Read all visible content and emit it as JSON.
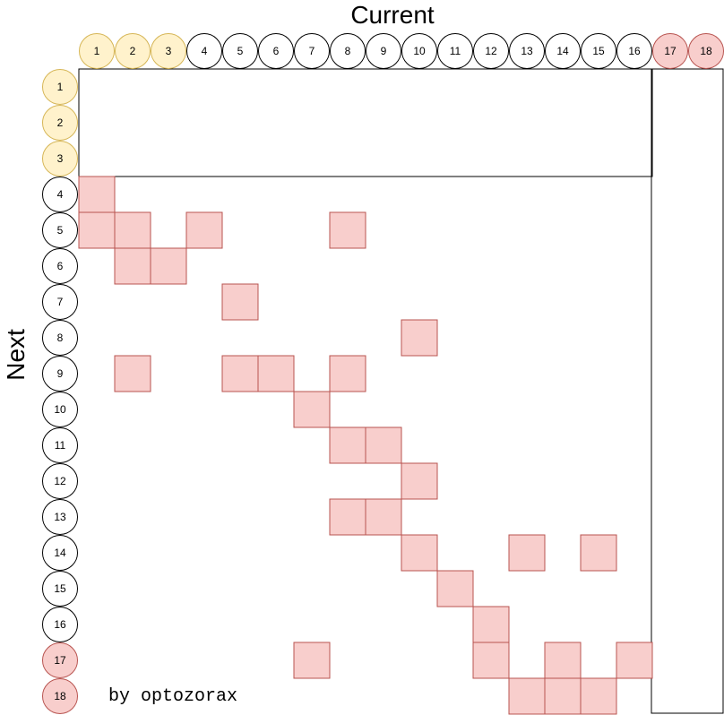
{
  "x_axis_title": "Current",
  "y_axis_title": "Next",
  "credit": "by optozorax",
  "nodes": [
    {
      "label": "1",
      "group": "start"
    },
    {
      "label": "2",
      "group": "start"
    },
    {
      "label": "3",
      "group": "start"
    },
    {
      "label": "4",
      "group": "normal"
    },
    {
      "label": "5",
      "group": "normal"
    },
    {
      "label": "6",
      "group": "normal"
    },
    {
      "label": "7",
      "group": "normal"
    },
    {
      "label": "8",
      "group": "normal"
    },
    {
      "label": "9",
      "group": "normal"
    },
    {
      "label": "10",
      "group": "normal"
    },
    {
      "label": "11",
      "group": "normal"
    },
    {
      "label": "12",
      "group": "normal"
    },
    {
      "label": "13",
      "group": "normal"
    },
    {
      "label": "14",
      "group": "normal"
    },
    {
      "label": "15",
      "group": "normal"
    },
    {
      "label": "16",
      "group": "normal"
    },
    {
      "label": "17",
      "group": "end"
    },
    {
      "label": "18",
      "group": "end"
    }
  ],
  "colors": {
    "start_fill": "#fff2cc",
    "start_stroke": "#d6b656",
    "normal_fill": "#ffffff",
    "normal_stroke": "#000000",
    "end_fill": "#f8cecc",
    "end_stroke": "#b85450",
    "cell_fill": "#f8cecc",
    "cell_stroke": "#b85450"
  },
  "transitions": [
    {
      "current": 1,
      "next": 4
    },
    {
      "current": 1,
      "next": 5
    },
    {
      "current": 2,
      "next": 5
    },
    {
      "current": 4,
      "next": 5
    },
    {
      "current": 8,
      "next": 5
    },
    {
      "current": 2,
      "next": 6
    },
    {
      "current": 3,
      "next": 6
    },
    {
      "current": 5,
      "next": 7
    },
    {
      "current": 10,
      "next": 8
    },
    {
      "current": 2,
      "next": 9
    },
    {
      "current": 5,
      "next": 9
    },
    {
      "current": 6,
      "next": 9
    },
    {
      "current": 8,
      "next": 9
    },
    {
      "current": 7,
      "next": 10
    },
    {
      "current": 8,
      "next": 11
    },
    {
      "current": 9,
      "next": 11
    },
    {
      "current": 10,
      "next": 12
    },
    {
      "current": 8,
      "next": 13
    },
    {
      "current": 9,
      "next": 13
    },
    {
      "current": 10,
      "next": 14
    },
    {
      "current": 13,
      "next": 14
    },
    {
      "current": 15,
      "next": 14
    },
    {
      "current": 11,
      "next": 15
    },
    {
      "current": 12,
      "next": 16
    },
    {
      "current": 7,
      "next": 17
    },
    {
      "current": 12,
      "next": 17
    },
    {
      "current": 14,
      "next": 17
    },
    {
      "current": 16,
      "next": 17
    },
    {
      "current": 13,
      "next": 18
    },
    {
      "current": 14,
      "next": 18
    },
    {
      "current": 15,
      "next": 18
    }
  ]
}
